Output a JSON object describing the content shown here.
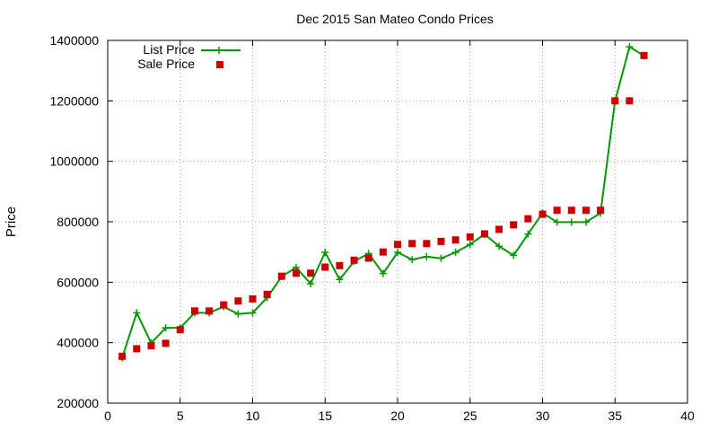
{
  "chart_data": {
    "type": "line",
    "title": "Dec 2015 San Mateo Condo Prices",
    "xlabel": "",
    "ylabel": "Price",
    "xlim": [
      0,
      40
    ],
    "ylim": [
      200000,
      1400000
    ],
    "x_ticks": [
      "0",
      "5",
      "10",
      "15",
      "20",
      "25",
      "30",
      "35",
      "40"
    ],
    "y_ticks": [
      "200000",
      "400000",
      "600000",
      "800000",
      "1000000",
      "1200000",
      "1400000"
    ],
    "grid": true,
    "legend_position": "top-left",
    "series": [
      {
        "name": "List Price",
        "style": "line-with-plus-markers",
        "color": "#009900",
        "x": [
          1,
          2,
          3,
          4,
          5,
          6,
          7,
          8,
          9,
          10,
          11,
          12,
          13,
          14,
          15,
          16,
          17,
          18,
          19,
          20,
          21,
          22,
          23,
          24,
          25,
          26,
          27,
          28,
          29,
          30,
          31,
          32,
          33,
          34,
          35,
          36,
          37
        ],
        "y": [
          350000,
          499000,
          399000,
          449000,
          449000,
          499000,
          499000,
          519000,
          495000,
          499000,
          549000,
          619000,
          649000,
          595000,
          699000,
          609000,
          669000,
          695000,
          629000,
          699000,
          675000,
          685000,
          679000,
          699000,
          725000,
          759000,
          719000,
          689000,
          759000,
          829000,
          799000,
          799000,
          799000,
          829000,
          1199000,
          1379000,
          1349000
        ]
      },
      {
        "name": "Sale Price",
        "style": "square-markers",
        "color": "#cc0000",
        "x": [
          1,
          2,
          3,
          4,
          5,
          6,
          7,
          8,
          9,
          10,
          11,
          12,
          13,
          14,
          15,
          16,
          17,
          18,
          19,
          20,
          21,
          22,
          23,
          24,
          25,
          26,
          27,
          28,
          29,
          30,
          31,
          32,
          33,
          34,
          35,
          36,
          37
        ],
        "y": [
          355000,
          380000,
          390000,
          398000,
          443000,
          505000,
          505000,
          525000,
          538000,
          545000,
          560000,
          620000,
          630000,
          630000,
          650000,
          655000,
          673000,
          680000,
          700000,
          725000,
          728000,
          728000,
          735000,
          740000,
          750000,
          760000,
          775000,
          790000,
          810000,
          825000,
          838000,
          838000,
          838000,
          838000,
          1200000,
          1200000,
          1350000
        ]
      }
    ]
  }
}
